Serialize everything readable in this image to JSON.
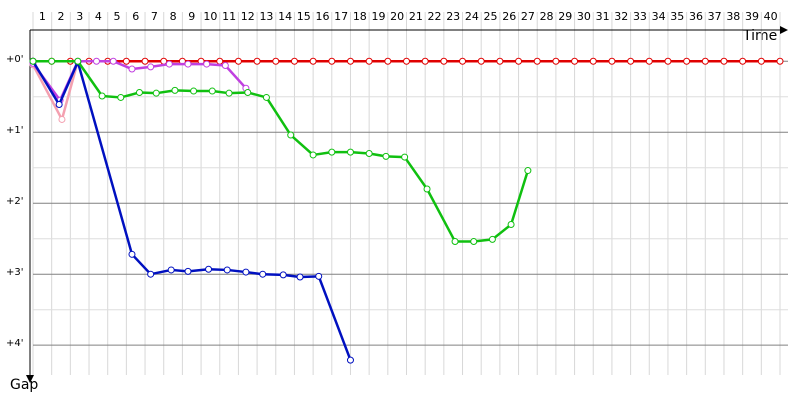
{
  "chart_data": {
    "type": "line",
    "x_label": "Time",
    "y_label": "Gap",
    "x_labels": [
      1,
      2,
      3,
      4,
      5,
      6,
      7,
      8,
      9,
      10,
      11,
      12,
      13,
      14,
      15,
      16,
      17,
      18,
      19,
      20,
      21,
      22,
      23,
      24,
      25,
      26,
      27,
      28,
      29,
      30,
      31,
      32,
      33,
      34,
      35,
      36,
      37,
      38,
      39,
      40
    ],
    "xlim": [
      0,
      40
    ],
    "ylim": [
      -0.44,
      4.42
    ],
    "y_inverted": true,
    "yticks": [
      {
        "value": 0,
        "label": "+0'"
      },
      {
        "value": 1,
        "label": "+1'"
      },
      {
        "value": 2,
        "label": "+2'"
      },
      {
        "value": 3,
        "label": "+3'"
      },
      {
        "value": 4,
        "label": "+4'"
      }
    ],
    "grid": true,
    "series": [
      {
        "color": "#e00000",
        "x": [
          0,
          1,
          2,
          3,
          4,
          5,
          6,
          7,
          8,
          9,
          10,
          11,
          12,
          13,
          14,
          15,
          16,
          17,
          18,
          19,
          20,
          21,
          22,
          23,
          24,
          25,
          26,
          27,
          28,
          29,
          30,
          31,
          32,
          33,
          34,
          35,
          36,
          37,
          38,
          39,
          40
        ],
        "values": [
          0,
          0,
          0,
          0,
          0,
          0,
          0,
          0,
          0,
          0,
          0,
          0,
          0,
          0,
          0,
          0,
          0,
          0,
          0,
          0,
          0,
          0,
          0,
          0,
          0,
          0,
          0,
          0,
          0,
          0,
          0,
          0,
          0,
          0,
          0,
          0,
          0,
          0,
          0,
          0,
          0
        ]
      },
      {
        "color": "#f4a0b0",
        "x": [
          0,
          1.55,
          2.4
        ],
        "values": [
          0.05,
          0.82,
          0.0
        ]
      },
      {
        "color": "#c040e0",
        "x": [
          0,
          1.45,
          2.4,
          3.4,
          4.3,
          5.3,
          6.3,
          7.3,
          8.3,
          9.3,
          10.3,
          11.4
        ],
        "values": [
          0.03,
          0.55,
          0,
          0,
          0,
          0.11,
          0.08,
          0.04,
          0.04,
          0.04,
          0.06,
          0.38
        ]
      },
      {
        "color": "#0010c0",
        "x": [
          0,
          1.4,
          2.4,
          5.3,
          6.3,
          7.4,
          8.3,
          9.4,
          10.4,
          11.4,
          12.3,
          13.4,
          14.3,
          15.3,
          17.0
        ],
        "values": [
          0,
          0.61,
          0.01,
          2.72,
          3.0,
          2.94,
          2.96,
          2.93,
          2.94,
          2.97,
          3.0,
          3.01,
          3.04,
          3.03,
          4.21
        ]
      },
      {
        "color": "#10c010",
        "x": [
          0,
          1,
          2.4,
          3.7,
          4.7,
          5.7,
          6.6,
          7.6,
          8.6,
          9.6,
          10.5,
          11.5,
          12.5,
          13.8,
          15.0,
          16.0,
          17.0,
          18.0,
          18.9,
          19.9,
          21.1,
          22.6,
          23.6,
          24.6,
          25.6,
          26.5
        ],
        "values": [
          0,
          0,
          0,
          0.49,
          0.51,
          0.44,
          0.45,
          0.41,
          0.42,
          0.42,
          0.45,
          0.44,
          0.51,
          1.04,
          1.32,
          1.28,
          1.28,
          1.3,
          1.34,
          1.35,
          1.8,
          2.54,
          2.54,
          2.51,
          2.3,
          1.54
        ]
      }
    ]
  }
}
